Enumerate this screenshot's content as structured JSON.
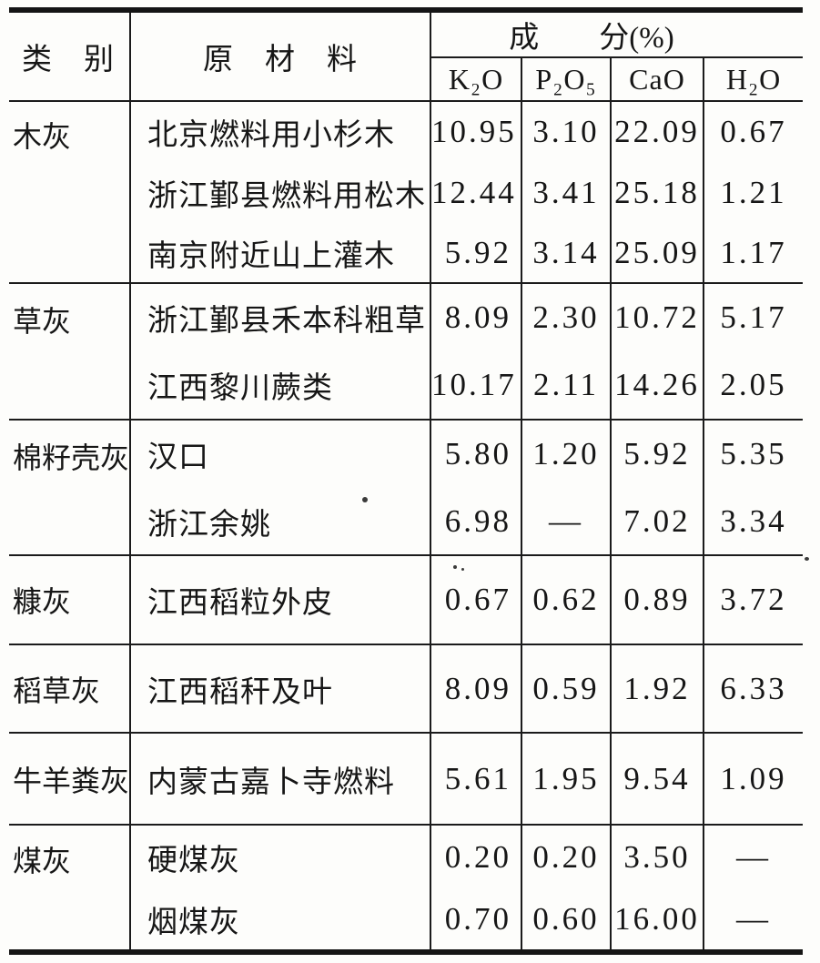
{
  "colors": {
    "ink": "#1b1b1b",
    "paper": "#fdfdfb"
  },
  "table": {
    "headers": {
      "category": "类　别",
      "material": "原　材　料",
      "composition": "成　　分(%)",
      "components": [
        "K₂O",
        "P₂O₅",
        "CaO",
        "H₂O"
      ]
    },
    "groups": [
      {
        "category": "木灰",
        "rows": [
          {
            "material": "北京燃料用小杉木",
            "values": [
              "10.95",
              "3.10",
              "22.09",
              "0.67"
            ]
          },
          {
            "material": "浙江鄞县燃料用松木",
            "values": [
              "12.44",
              "3.41",
              "25.18",
              "1.21"
            ]
          },
          {
            "material": "南京附近山上灌木",
            "values": [
              "5.92",
              "3.14",
              "25.09",
              "1.17"
            ]
          }
        ]
      },
      {
        "category": "草灰",
        "rows": [
          {
            "material": "浙江鄞县禾本科粗草",
            "values": [
              "8.09",
              "2.30",
              "10.72",
              "5.17"
            ]
          },
          {
            "material": "江西黎川蕨类",
            "values": [
              "10.17",
              "2.11",
              "14.26",
              "2.05"
            ]
          }
        ]
      },
      {
        "category": "棉籽壳灰",
        "rows": [
          {
            "material": "汉口",
            "values": [
              "5.80",
              "1.20",
              "5.92",
              "5.35"
            ]
          },
          {
            "material": "浙江余姚",
            "values": [
              "6.98",
              "—",
              "7.02",
              "3.34"
            ]
          }
        ]
      },
      {
        "category": "糠灰",
        "rows": [
          {
            "material": "江西稻粒外皮",
            "values": [
              "0.67",
              "0.62",
              "0.89",
              "3.72"
            ]
          }
        ]
      },
      {
        "category": "稻草灰",
        "rows": [
          {
            "material": "江西稻秆及叶",
            "values": [
              "8.09",
              "0.59",
              "1.92",
              "6.33"
            ]
          }
        ]
      },
      {
        "category": "牛羊粪灰",
        "rows": [
          {
            "material": "内蒙古嘉卜寺燃料",
            "values": [
              "5.61",
              "1.95",
              "9.54",
              "1.09"
            ]
          }
        ]
      },
      {
        "category": "煤灰",
        "rows": [
          {
            "material": "硬煤灰",
            "values": [
              "0.20",
              "0.20",
              "3.50",
              "—"
            ]
          },
          {
            "material": "烟煤灰",
            "values": [
              "0.70",
              "0.60",
              "16.00",
              "—"
            ]
          }
        ]
      }
    ]
  }
}
